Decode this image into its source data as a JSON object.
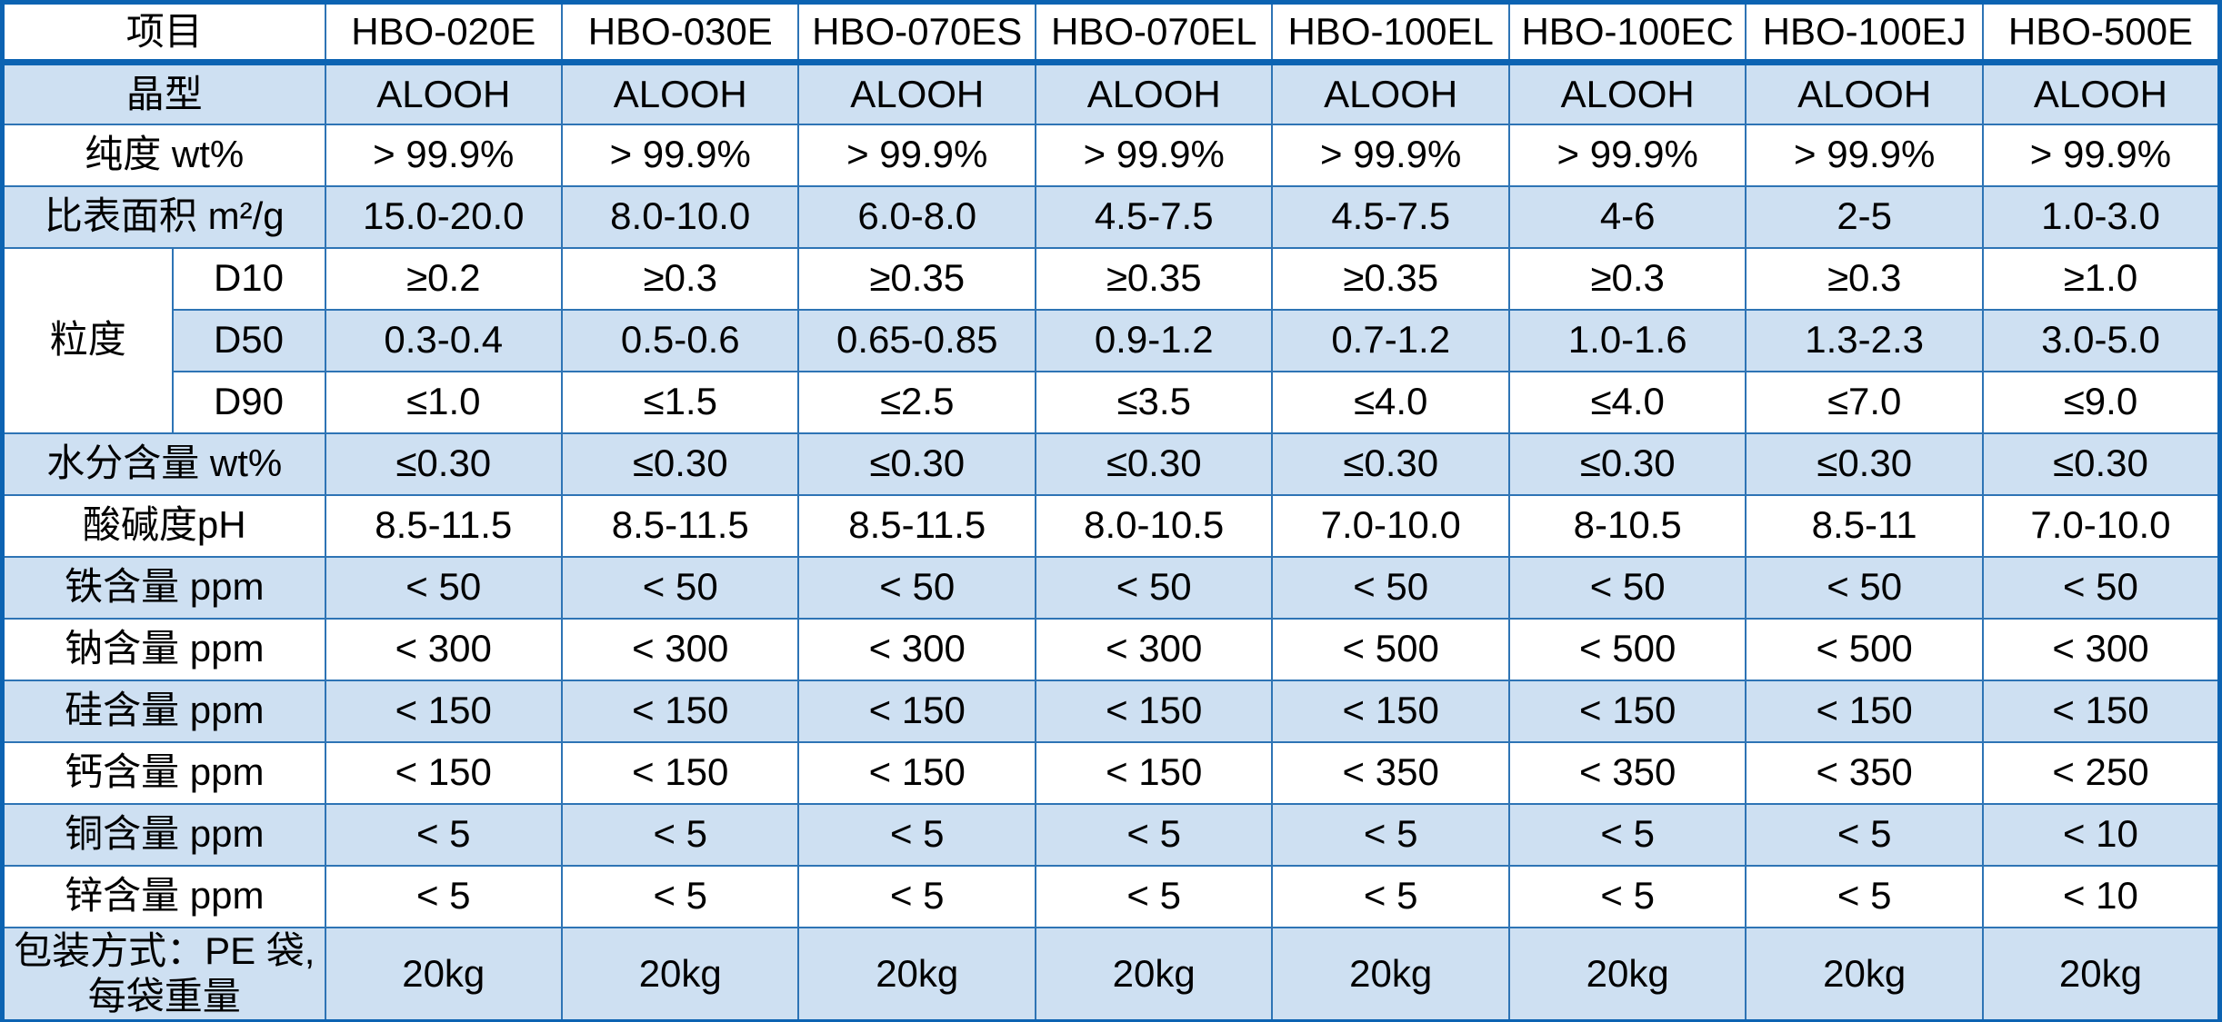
{
  "table": {
    "header_label": "项目",
    "products": [
      "HBO-020E",
      "HBO-030E",
      "HBO-070ES",
      "HBO-070EL",
      "HBO-100EL",
      "HBO-100EC",
      "HBO-100EJ",
      "HBO-500E"
    ],
    "granule_group_label": "粒度",
    "body": [
      {
        "label": "晶型",
        "values": [
          "ALOOH",
          "ALOOH",
          "ALOOH",
          "ALOOH",
          "ALOOH",
          "ALOOH",
          "ALOOH",
          "ALOOH"
        ]
      },
      {
        "label": "纯度 wt%",
        "values": [
          "> 99.9%",
          "> 99.9%",
          "> 99.9%",
          "> 99.9%",
          "> 99.9%",
          "> 99.9%",
          "> 99.9%",
          "> 99.9%"
        ]
      },
      {
        "label": "比表面积 m²/g",
        "values": [
          "15.0-20.0",
          "8.0-10.0",
          "6.0-8.0",
          "4.5-7.5",
          "4.5-7.5",
          "4-6",
          "2-5",
          "1.0-3.0"
        ]
      },
      {
        "label": "D10",
        "sub": true,
        "group_start": true,
        "values": [
          "≥0.2",
          "≥0.3",
          "≥0.35",
          "≥0.35",
          "≥0.35",
          "≥0.3",
          "≥0.3",
          "≥1.0"
        ]
      },
      {
        "label": "D50",
        "sub": true,
        "values": [
          "0.3-0.4",
          "0.5-0.6",
          "0.65-0.85",
          "0.9-1.2",
          "0.7-1.2",
          "1.0-1.6",
          "1.3-2.3",
          "3.0-5.0"
        ]
      },
      {
        "label": "D90",
        "sub": true,
        "group_end": true,
        "values": [
          "≤1.0",
          "≤1.5",
          "≤2.5",
          "≤3.5",
          "≤4.0",
          "≤4.0",
          "≤7.0",
          "≤9.0"
        ]
      },
      {
        "label": "水分含量 wt%",
        "values": [
          "≤0.30",
          "≤0.30",
          "≤0.30",
          "≤0.30",
          "≤0.30",
          "≤0.30",
          "≤0.30",
          "≤0.30"
        ]
      },
      {
        "label": "酸碱度pH",
        "values": [
          "8.5-11.5",
          "8.5-11.5",
          "8.5-11.5",
          "8.0-10.5",
          "7.0-10.0",
          "8-10.5",
          "8.5-11",
          "7.0-10.0"
        ]
      },
      {
        "label": "铁含量 ppm",
        "values": [
          "< 50",
          "< 50",
          "< 50",
          "< 50",
          "< 50",
          "< 50",
          "< 50",
          "< 50"
        ]
      },
      {
        "label": "钠含量 ppm",
        "values": [
          "< 300",
          "< 300",
          "< 300",
          "< 300",
          "< 500",
          "< 500",
          "< 500",
          "< 300"
        ]
      },
      {
        "label": "硅含量 ppm",
        "values": [
          "< 150",
          "< 150",
          "< 150",
          "< 150",
          "< 150",
          "< 150",
          "< 150",
          "< 150"
        ]
      },
      {
        "label": "钙含量 ppm",
        "values": [
          "< 150",
          "< 150",
          "< 150",
          "< 150",
          "< 350",
          "< 350",
          "< 350",
          "< 250"
        ]
      },
      {
        "label": "铜含量 ppm",
        "values": [
          "< 5",
          "< 5",
          "< 5",
          "< 5",
          "< 5",
          "< 5",
          "< 5",
          "< 10"
        ]
      },
      {
        "label": "锌含量 ppm",
        "values": [
          "< 5",
          "< 5",
          "< 5",
          "< 5",
          "< 5",
          "< 5",
          "< 5",
          "< 10"
        ]
      },
      {
        "label": "包装方式：PE 袋,\n每袋重量",
        "packaging": true,
        "values": [
          "20kg",
          "20kg",
          "20kg",
          "20kg",
          "20kg",
          "20kg",
          "20kg",
          "20kg"
        ]
      }
    ]
  },
  "colors": {
    "frame_blue": "#0c63b2",
    "grid_blue": "#2e74b5",
    "stripe_blue": "#cee0f2",
    "divider_black": "#000000",
    "text": "#000000",
    "background": "#ffffff"
  }
}
